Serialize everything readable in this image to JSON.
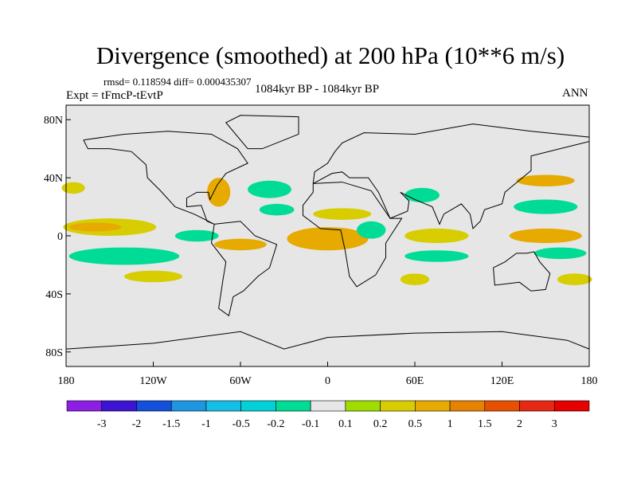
{
  "header": {
    "title": "Divergence (smoothed) at 200 hPa (10**6 m/s)",
    "stats": "rmsd= 0.118594 diff= 0.000435307",
    "experiment": "Expt = tFmcP-tEvtP",
    "period": "1084kyr BP - 1084kyr BP",
    "season": "ANN"
  },
  "chart_data": {
    "type": "heatmap",
    "projection": "cylindrical-equidistant",
    "xlim": [
      -180,
      180
    ],
    "ylim": [
      -90,
      90
    ],
    "x_ticks": [
      {
        "value": -180,
        "label": "180"
      },
      {
        "value": -120,
        "label": "120W"
      },
      {
        "value": -60,
        "label": "60W"
      },
      {
        "value": 0,
        "label": "0"
      },
      {
        "value": 60,
        "label": "60E"
      },
      {
        "value": 120,
        "label": "120E"
      },
      {
        "value": 180,
        "label": "180"
      }
    ],
    "y_ticks": [
      {
        "value": 80,
        "label": "80N"
      },
      {
        "value": 40,
        "label": "40N"
      },
      {
        "value": 0,
        "label": "0"
      },
      {
        "value": -40,
        "label": "40S"
      },
      {
        "value": -80,
        "label": "80S"
      }
    ],
    "background_color": "#e6e6e6",
    "colorbar": {
      "colors": [
        "#8c1ee6",
        "#3c14d2",
        "#1450dc",
        "#1e96e1",
        "#14bee6",
        "#00d2d7",
        "#00dc96",
        "#e6e6e6",
        "#a0dc00",
        "#d7cd00",
        "#e6aa00",
        "#e68200",
        "#e65000",
        "#e62814",
        "#e60000"
      ],
      "labels": [
        "-3",
        "-2",
        "-1.5",
        "-1",
        "-0.5",
        "-0.2",
        "-0.1",
        "0.1",
        "0.2",
        "0.5",
        "1",
        "1.5",
        "2",
        "3"
      ]
    },
    "anomaly_regions": [
      {
        "lon": -150,
        "lat": 6,
        "rlon": 32,
        "rlat": 6,
        "level": 0.2
      },
      {
        "lon": -160,
        "lat": 6,
        "rlon": 18,
        "rlat": 3,
        "level": 0.5
      },
      {
        "lon": -140,
        "lat": -14,
        "rlon": 38,
        "rlat": 6,
        "level": -0.2
      },
      {
        "lon": -120,
        "lat": -28,
        "rlon": 20,
        "rlat": 4,
        "level": 0.2
      },
      {
        "lon": -90,
        "lat": 0,
        "rlon": 15,
        "rlat": 4,
        "level": -0.2
      },
      {
        "lon": -60,
        "lat": -6,
        "rlon": 18,
        "rlat": 4,
        "level": 0.5
      },
      {
        "lon": -75,
        "lat": 30,
        "rlon": 8,
        "rlat": 10,
        "level": 0.5
      },
      {
        "lon": -40,
        "lat": 32,
        "rlon": 15,
        "rlat": 6,
        "level": -0.2
      },
      {
        "lon": -35,
        "lat": 18,
        "rlon": 12,
        "rlat": 4,
        "level": -0.2
      },
      {
        "lon": 0,
        "lat": -2,
        "rlon": 28,
        "rlat": 8,
        "level": 0.5
      },
      {
        "lon": 10,
        "lat": 15,
        "rlon": 20,
        "rlat": 4,
        "level": 0.2
      },
      {
        "lon": 30,
        "lat": 4,
        "rlon": 10,
        "rlat": 6,
        "level": -0.2
      },
      {
        "lon": 65,
        "lat": 28,
        "rlon": 12,
        "rlat": 5,
        "level": -0.2
      },
      {
        "lon": 75,
        "lat": 0,
        "rlon": 22,
        "rlat": 5,
        "level": 0.2
      },
      {
        "lon": 75,
        "lat": -14,
        "rlon": 22,
        "rlat": 4,
        "level": -0.2
      },
      {
        "lon": 60,
        "lat": -30,
        "rlon": 10,
        "rlat": 4,
        "level": 0.2
      },
      {
        "lon": 150,
        "lat": 0,
        "rlon": 25,
        "rlat": 5,
        "level": 0.5
      },
      {
        "lon": 150,
        "lat": 20,
        "rlon": 22,
        "rlat": 5,
        "level": -0.2
      },
      {
        "lon": 150,
        "lat": 38,
        "rlon": 20,
        "rlat": 4,
        "level": 0.5
      },
      {
        "lon": 160,
        "lat": -12,
        "rlon": 18,
        "rlat": 4,
        "level": -0.2
      },
      {
        "lon": 170,
        "lat": -30,
        "rlon": 12,
        "rlat": 4,
        "level": 0.2
      },
      {
        "lon": -175,
        "lat": 33,
        "rlon": 8,
        "rlat": 4,
        "level": 0.2
      }
    ]
  }
}
